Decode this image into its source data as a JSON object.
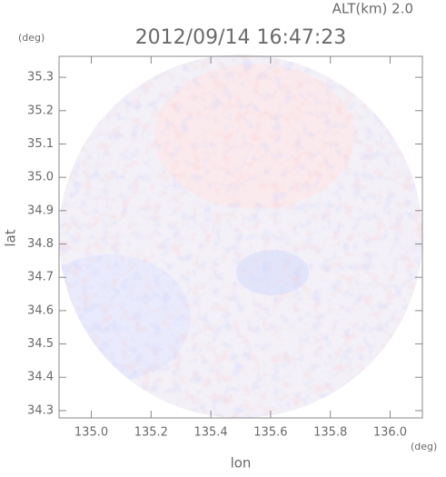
{
  "chart_data": {
    "type": "image",
    "title": "2012/09/14 16:47:23",
    "annotation": "ALT(km) 2.0",
    "x_label": "lon",
    "x_unit": "(deg)",
    "y_label": "lat",
    "y_unit": "(deg)",
    "xlim": [
      134.892,
      136.108
    ],
    "ylim": [
      34.278,
      35.363
    ],
    "xticks": [
      {
        "value": 135.0,
        "label": "135.0"
      },
      135.2,
      135.4,
      135.6,
      135.8,
      {
        "value": 136.0,
        "label": "136.0"
      }
    ],
    "yticks": [
      34.3,
      34.4,
      34.5,
      34.6,
      34.7,
      34.8,
      34.9,
      {
        "value": 35.0,
        "label": "35.0"
      },
      35.1,
      35.2,
      35.3
    ]
  }
}
